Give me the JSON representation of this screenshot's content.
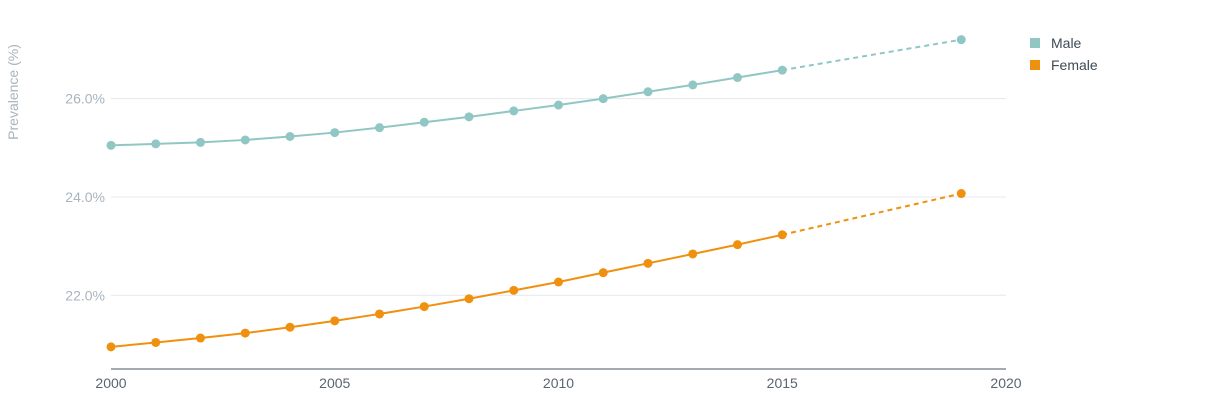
{
  "chart_data": {
    "type": "line",
    "title": "",
    "xlabel": "",
    "ylabel": "Prevalence (%)",
    "xlim": [
      2000,
      2020
    ],
    "ylim": [
      20.5,
      27.6
    ],
    "x_ticks": [
      2000,
      2005,
      2010,
      2015,
      2020
    ],
    "y_ticks": [
      22,
      24,
      26
    ],
    "y_tick_labels": [
      "22.0%",
      "24.0%",
      "26.0%"
    ],
    "grid": true,
    "legend_position": "top-right",
    "solid_until": 2015,
    "series": [
      {
        "name": "Male",
        "color": "#90c7c4",
        "x": [
          2000,
          2001,
          2002,
          2003,
          2004,
          2005,
          2006,
          2007,
          2008,
          2009,
          2010,
          2011,
          2012,
          2013,
          2014,
          2015,
          2019
        ],
        "y": [
          25.05,
          25.08,
          25.11,
          25.16,
          25.23,
          25.31,
          25.41,
          25.52,
          25.63,
          25.75,
          25.87,
          26.0,
          26.14,
          26.28,
          26.43,
          26.58,
          27.2
        ]
      },
      {
        "name": "Female",
        "color": "#f0900f",
        "x": [
          2000,
          2001,
          2002,
          2003,
          2004,
          2005,
          2006,
          2007,
          2008,
          2009,
          2010,
          2011,
          2012,
          2013,
          2014,
          2015,
          2019
        ],
        "y": [
          20.95,
          21.04,
          21.13,
          21.23,
          21.35,
          21.48,
          21.62,
          21.77,
          21.93,
          22.1,
          22.27,
          22.46,
          22.65,
          22.84,
          23.03,
          23.23,
          24.07
        ]
      }
    ]
  }
}
